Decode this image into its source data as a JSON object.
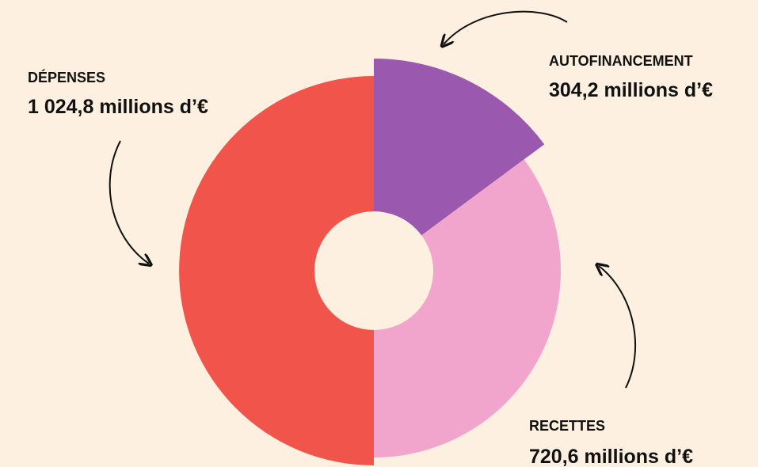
{
  "chart_data": {
    "type": "pie",
    "categories": [
      "AUTOFINANCEMENT",
      "RECETTES",
      "DÉPENSES"
    ],
    "values": [
      304.2,
      720.6,
      1024.8
    ],
    "value_labels": [
      "304,2 millions d’€",
      "720,6 millions d’€",
      "1 024,8 millions d’€"
    ],
    "colors": [
      "#9a58ae",
      "#f1a5cc",
      "#f0544b"
    ],
    "donut": true
  }
}
